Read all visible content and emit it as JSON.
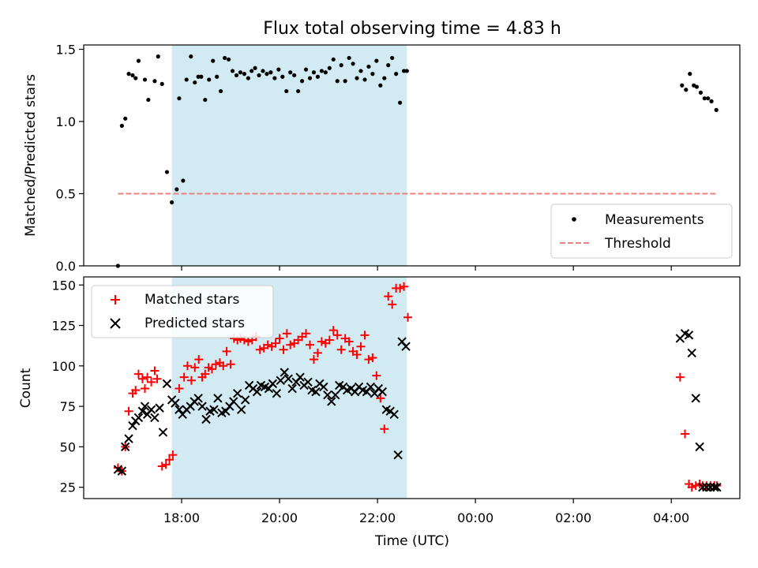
{
  "chart_data": {
    "title": "Flux total observing time = 4.83 h",
    "shaded_span_hours": [
      17.8,
      22.6
    ],
    "shade_color": "#add8e6",
    "x_axis": {
      "label": "Time (UTC)",
      "range_hours": [
        16.0,
        29.4
      ],
      "ticks": [
        {
          "value": 18,
          "label": "18:00"
        },
        {
          "value": 20,
          "label": "20:00"
        },
        {
          "value": 22,
          "label": "22:00"
        },
        {
          "value": 24,
          "label": "00:00"
        },
        {
          "value": 26,
          "label": "02:00"
        },
        {
          "value": 28,
          "label": "04:00"
        }
      ]
    },
    "top": {
      "type": "scatter",
      "ylabel": "Matched/Predicted stars",
      "ylim": [
        0,
        1.53
      ],
      "yticks": [
        {
          "value": 0.0,
          "label": "0.0"
        },
        {
          "value": 0.5,
          "label": "0.5"
        },
        {
          "value": 1.0,
          "label": "1.0"
        },
        {
          "value": 1.5,
          "label": "1.5"
        }
      ],
      "threshold": {
        "value": 0.5,
        "x_range": [
          16.7,
          28.95
        ],
        "color": "#f08080"
      },
      "legend": {
        "position": "lower-right",
        "measurements": "Measurements",
        "threshold": "Threshold"
      },
      "x": [
        16.7,
        16.78,
        16.85,
        16.92,
        17.0,
        17.06,
        17.12,
        17.25,
        17.32,
        17.45,
        17.52,
        17.6,
        17.7,
        17.8,
        17.9,
        17.95,
        18.03,
        18.1,
        18.19,
        18.27,
        18.34,
        18.4,
        18.48,
        18.56,
        18.64,
        18.72,
        18.8,
        18.88,
        18.96,
        19.04,
        19.12,
        19.2,
        19.28,
        19.36,
        19.43,
        19.5,
        19.58,
        19.66,
        19.74,
        19.82,
        19.9,
        19.98,
        20.06,
        20.14,
        20.22,
        20.3,
        20.38,
        20.46,
        20.54,
        20.62,
        20.7,
        20.78,
        20.86,
        20.94,
        21.02,
        21.1,
        21.18,
        21.26,
        21.34,
        21.42,
        21.5,
        21.58,
        21.66,
        21.74,
        21.82,
        21.9,
        21.98,
        22.06,
        22.14,
        22.22,
        22.3,
        22.38,
        22.46,
        22.54,
        22.6,
        28.22,
        28.3,
        28.38,
        28.46,
        28.52,
        28.6,
        28.68,
        28.75,
        28.82,
        28.92
      ],
      "y": [
        0.0,
        0.97,
        1.02,
        1.33,
        1.32,
        1.3,
        1.42,
        1.29,
        1.15,
        1.28,
        1.45,
        1.26,
        0.65,
        0.44,
        0.53,
        1.16,
        0.59,
        1.29,
        1.45,
        1.27,
        1.31,
        1.31,
        1.15,
        1.29,
        1.42,
        1.31,
        1.21,
        1.44,
        1.43,
        1.35,
        1.32,
        1.34,
        1.33,
        1.3,
        1.35,
        1.37,
        1.32,
        1.35,
        1.33,
        1.34,
        1.3,
        1.36,
        1.31,
        1.21,
        1.34,
        1.32,
        1.21,
        1.28,
        1.36,
        1.3,
        1.34,
        1.31,
        1.35,
        1.34,
        1.37,
        1.43,
        1.28,
        1.39,
        1.28,
        1.44,
        1.4,
        1.3,
        1.35,
        1.29,
        1.38,
        1.33,
        1.42,
        1.25,
        1.3,
        1.39,
        1.44,
        1.33,
        1.13,
        1.35,
        1.35,
        1.25,
        1.22,
        1.33,
        1.25,
        1.24,
        1.2,
        1.16,
        1.16,
        1.14,
        1.08
      ]
    },
    "bottom": {
      "type": "scatter",
      "ylabel": "Count",
      "ylim": [
        18,
        155
      ],
      "yticks": [
        {
          "value": 25,
          "label": "25"
        },
        {
          "value": 50,
          "label": "50"
        },
        {
          "value": 75,
          "label": "75"
        },
        {
          "value": 100,
          "label": "100"
        },
        {
          "value": 125,
          "label": "125"
        },
        {
          "value": 150,
          "label": "150"
        }
      ],
      "legend": {
        "position": "top-left",
        "matched": "Matched stars",
        "predicted": "Predicted stars"
      },
      "matched": {
        "color": "#ff0000",
        "x": [
          16.7,
          16.78,
          16.85,
          16.92,
          17.0,
          17.06,
          17.12,
          17.2,
          17.25,
          17.3,
          17.38,
          17.45,
          17.5,
          17.6,
          17.68,
          17.75,
          17.82,
          17.95,
          18.05,
          18.12,
          18.2,
          18.27,
          18.35,
          18.42,
          18.48,
          18.55,
          18.62,
          18.7,
          18.78,
          18.85,
          18.92,
          19.0,
          19.07,
          19.14,
          19.2,
          19.28,
          19.36,
          19.44,
          19.52,
          19.6,
          19.68,
          19.76,
          19.84,
          19.92,
          20.0,
          20.08,
          20.15,
          20.22,
          20.3,
          20.38,
          20.46,
          20.54,
          20.62,
          20.7,
          20.78,
          20.86,
          20.94,
          21.02,
          21.1,
          21.18,
          21.26,
          21.34,
          21.42,
          21.5,
          21.58,
          21.66,
          21.74,
          21.82,
          21.9,
          21.98,
          22.06,
          22.14,
          22.22,
          22.3,
          22.38,
          22.46,
          22.54,
          22.62,
          28.18,
          28.28,
          28.36,
          28.42,
          28.5,
          28.58,
          28.64,
          28.72,
          28.8,
          28.88,
          28.93
        ],
        "y": [
          37,
          35,
          50,
          72,
          83,
          85,
          95,
          92,
          86,
          93,
          90,
          97,
          92,
          38,
          39,
          42,
          45,
          86,
          93,
          100,
          91,
          99,
          104,
          93,
          95,
          99,
          98,
          101,
          102,
          100,
          109,
          101,
          117,
          116,
          117,
          116,
          115,
          116,
          118,
          110,
          111,
          113,
          112,
          114,
          117,
          110,
          120,
          113,
          114,
          116,
          118,
          120,
          113,
          104,
          108,
          115,
          114,
          116,
          122,
          119,
          110,
          117,
          115,
          109,
          107,
          112,
          119,
          104,
          105,
          94,
          80,
          61,
          143,
          138,
          148,
          148,
          149,
          130,
          93,
          58,
          27,
          25,
          26,
          27,
          26,
          26,
          26,
          26,
          26
        ]
      },
      "predicted": {
        "color": "#000000",
        "x": [
          16.7,
          16.78,
          16.85,
          16.92,
          17.0,
          17.06,
          17.12,
          17.2,
          17.25,
          17.3,
          17.38,
          17.45,
          17.55,
          17.62,
          17.7,
          17.8,
          17.87,
          17.95,
          18.02,
          18.1,
          18.18,
          18.26,
          18.34,
          18.42,
          18.5,
          18.58,
          18.66,
          18.74,
          18.82,
          18.9,
          18.98,
          19.06,
          19.14,
          19.22,
          19.3,
          19.38,
          19.46,
          19.54,
          19.62,
          19.7,
          19.78,
          19.86,
          19.94,
          20.02,
          20.1,
          20.18,
          20.26,
          20.34,
          20.42,
          20.5,
          20.58,
          20.66,
          20.74,
          20.82,
          20.9,
          20.98,
          21.06,
          21.14,
          21.22,
          21.3,
          21.38,
          21.46,
          21.54,
          21.62,
          21.7,
          21.78,
          21.86,
          21.94,
          22.02,
          22.1,
          22.18,
          22.26,
          22.34,
          22.42,
          22.5,
          22.58,
          28.18,
          28.28,
          28.36,
          28.42,
          28.5,
          28.58,
          28.64,
          28.72,
          28.8,
          28.88,
          28.93
        ],
        "y": [
          36,
          35,
          50,
          55,
          63,
          66,
          68,
          72,
          75,
          70,
          73,
          68,
          74,
          59,
          89,
          79,
          77,
          73,
          70,
          73,
          75,
          78,
          80,
          75,
          67,
          72,
          73,
          80,
          71,
          72,
          75,
          78,
          83,
          73,
          79,
          88,
          86,
          84,
          88,
          87,
          86,
          89,
          83,
          91,
          96,
          92,
          86,
          90,
          93,
          88,
          90,
          85,
          84,
          89,
          87,
          82,
          78,
          82,
          88,
          87,
          85,
          86,
          84,
          87,
          85,
          84,
          87,
          83,
          86,
          84,
          73,
          72,
          70,
          45,
          115,
          112,
          117,
          120,
          119,
          108,
          80,
          50,
          25,
          25,
          25,
          25,
          25
        ]
      }
    }
  }
}
